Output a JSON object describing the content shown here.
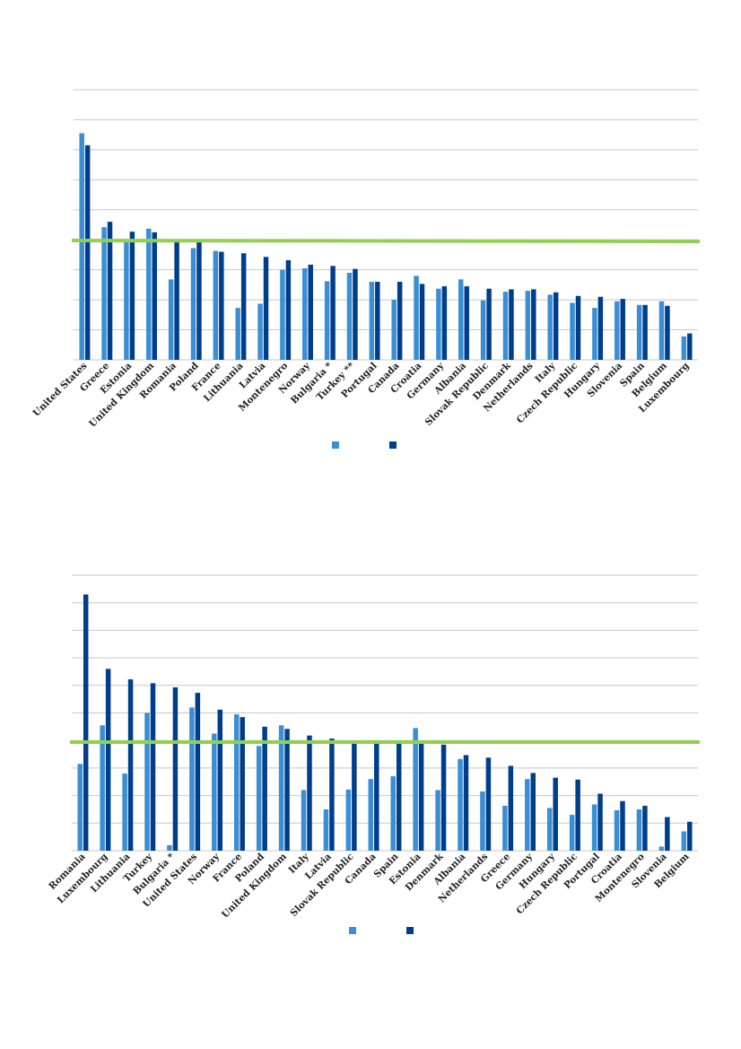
{
  "chart_data": [
    {
      "type": "bar",
      "title": "",
      "xlabel": "",
      "ylabel": "",
      "ylim": [
        0,
        9
      ],
      "grid": true,
      "reference_line": 4,
      "reference_color": "#92d050",
      "categories": [
        "United States",
        "Greece",
        "Estonia",
        "United Kingdom",
        "Romania",
        "Poland",
        "France",
        "Lithuania",
        "Latvia",
        "Montenegro",
        "Norway",
        "Bulgaria *",
        "Turkey **",
        "Portugal",
        "Canada",
        "Croatia",
        "Germany",
        "Albania",
        "Slovak Republic",
        "Denmark",
        "Netherlands",
        "Italy",
        "Czech Republic",
        "Hungary",
        "Slovenia",
        "Spain",
        "Belgium",
        "Luxembourg"
      ],
      "series": [
        {
          "values": [
            7.55,
            4.42,
            3.95,
            4.37,
            2.68,
            3.72,
            3.63,
            1.73,
            1.87,
            3.0,
            3.05,
            2.62,
            2.9,
            2.6,
            2.0,
            2.8,
            2.37,
            2.68,
            1.98,
            2.27,
            2.3,
            2.17,
            1.9,
            1.73,
            1.95,
            1.83,
            1.95,
            0.78
          ],
          "color": "#3a8fd4"
        },
        {
          "values": [
            7.15,
            4.6,
            4.27,
            4.25,
            3.95,
            3.95,
            3.6,
            3.55,
            3.43,
            3.32,
            3.17,
            3.13,
            3.03,
            2.6,
            2.6,
            2.53,
            2.45,
            2.45,
            2.37,
            2.35,
            2.35,
            2.25,
            2.13,
            2.1,
            2.03,
            1.83,
            1.8,
            0.88
          ],
          "color": "#003e8c"
        }
      ],
      "legend": "bottom-center"
    },
    {
      "type": "bar",
      "title": "",
      "xlabel": "",
      "ylabel": "",
      "ylim": [
        0,
        10
      ],
      "grid": true,
      "reference_line": 4,
      "reference_color": "#92d050",
      "categories": [
        "Romania",
        "Luxembourg",
        "Lithuania",
        "Turkey",
        "Bulgaria *",
        "United States",
        "Norway",
        "France",
        "Poland",
        "United Kingdom",
        "Italy",
        "Latvia",
        "Slovak Republic",
        "Canada",
        "Spain",
        "Estonia",
        "Denmark",
        "Albania",
        "Netherlands",
        "Greece",
        "Germany",
        "Hungary",
        "Czech Republic",
        "Portugal",
        "Croatia",
        "Montenegro",
        "Slovenia",
        "Belgium"
      ],
      "series": [
        {
          "values": [
            3.15,
            4.55,
            2.8,
            5.0,
            0.2,
            5.2,
            4.25,
            4.95,
            3.8,
            4.55,
            2.2,
            1.5,
            2.22,
            2.6,
            2.7,
            4.45,
            2.2,
            3.33,
            2.15,
            1.63,
            2.6,
            1.55,
            1.3,
            1.68,
            1.47,
            1.5,
            0.15,
            0.7
          ],
          "color": "#3a8fd4"
        },
        {
          "values": [
            9.3,
            6.6,
            6.22,
            6.08,
            5.93,
            5.73,
            5.12,
            4.85,
            4.5,
            4.42,
            4.18,
            4.07,
            3.95,
            3.92,
            3.9,
            3.9,
            3.85,
            3.47,
            3.38,
            3.08,
            2.82,
            2.65,
            2.58,
            2.07,
            1.8,
            1.63,
            1.22,
            1.05
          ],
          "color": "#003e8c"
        }
      ],
      "legend": "bottom-center"
    }
  ]
}
